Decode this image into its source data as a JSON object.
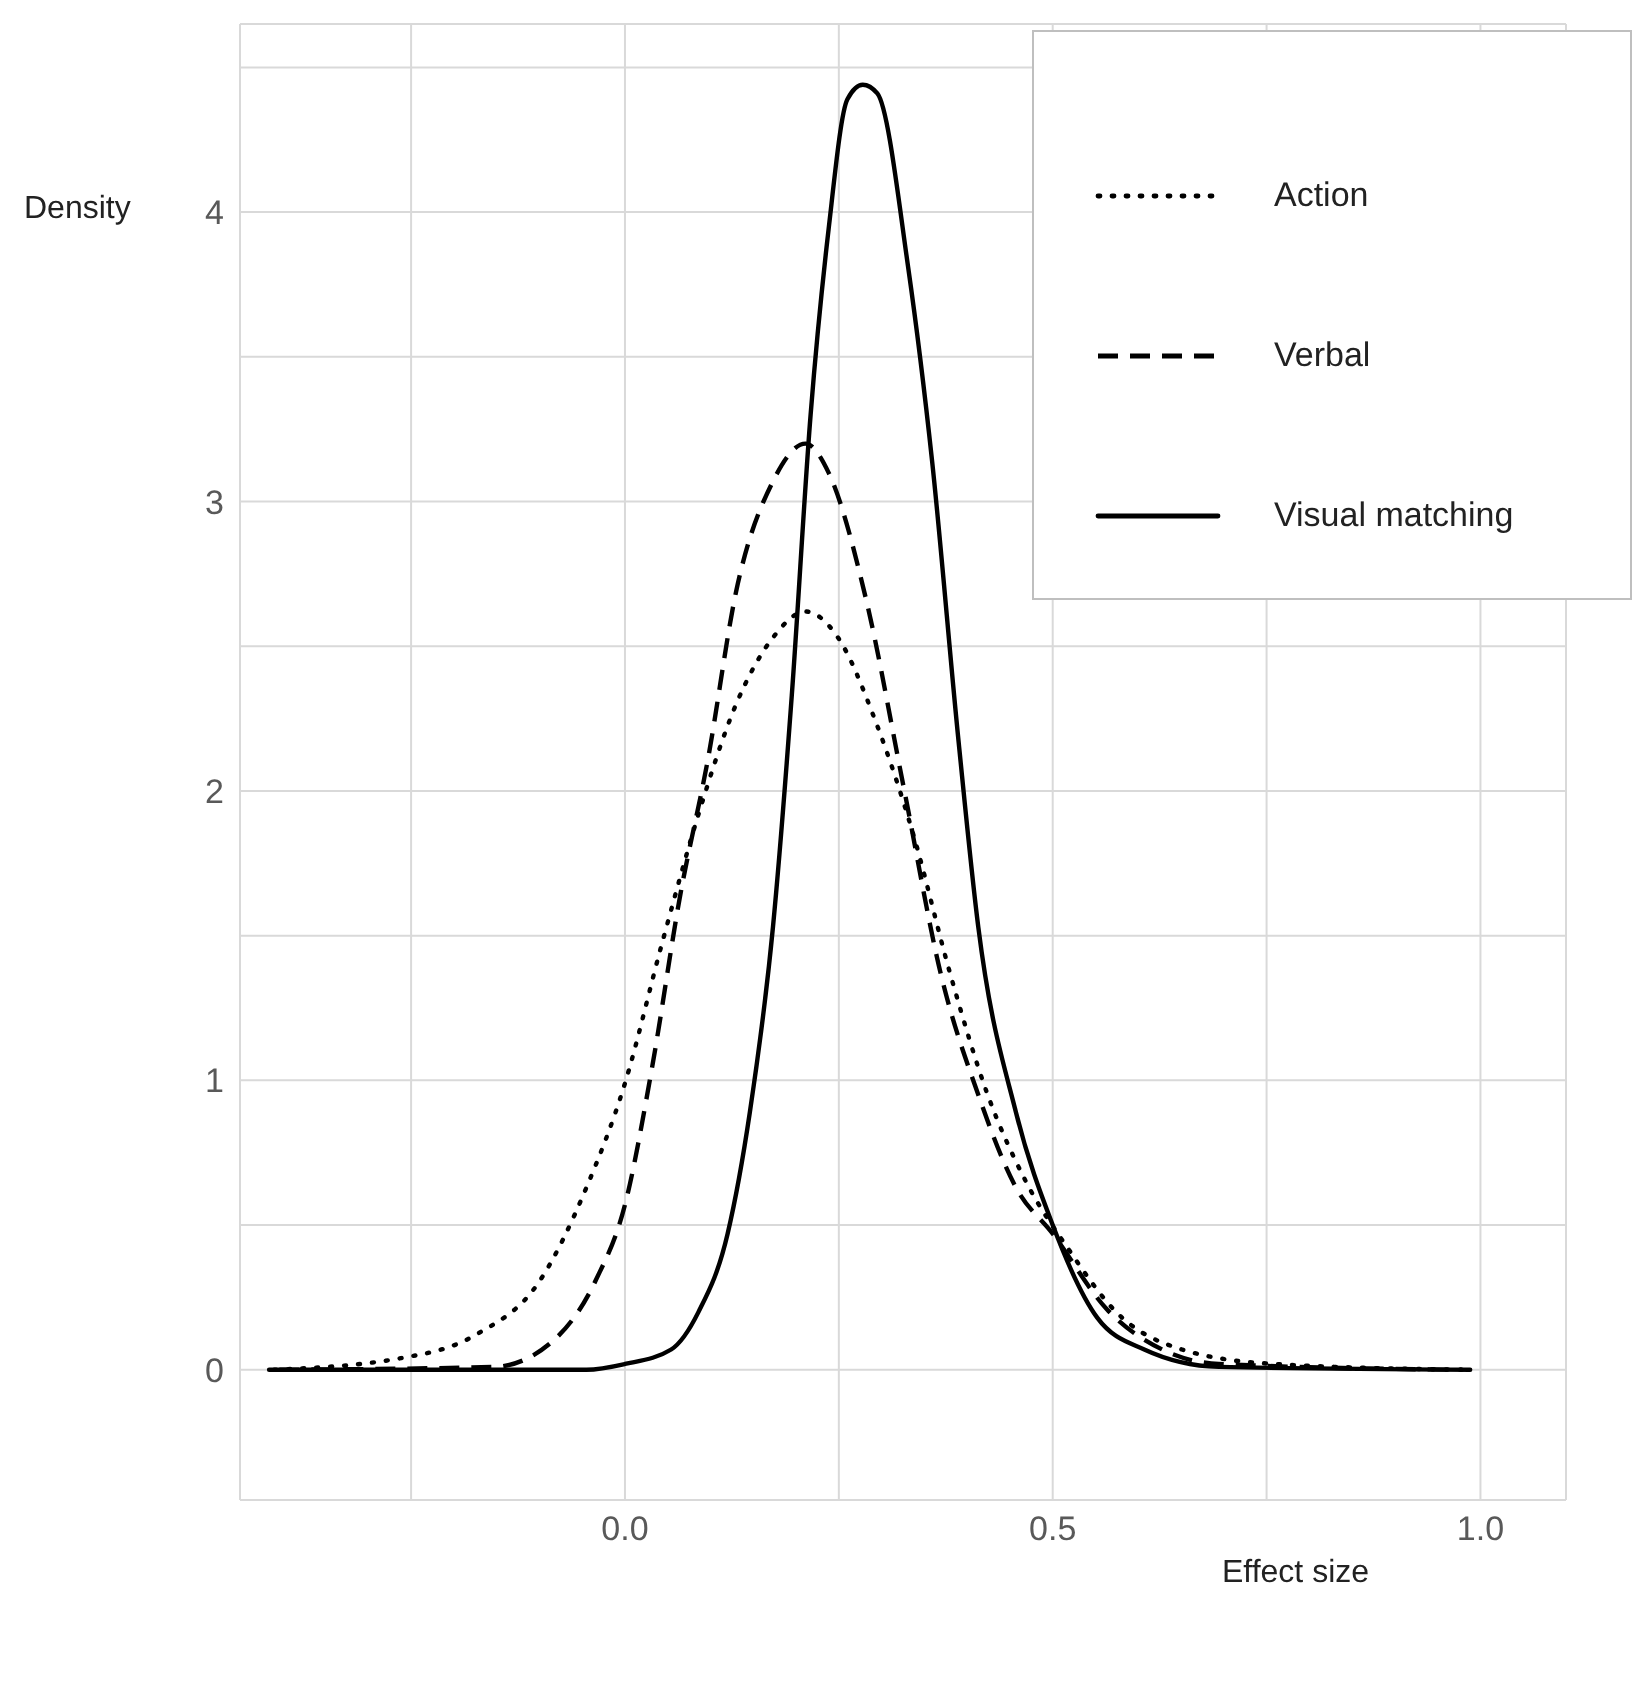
{
  "chart_data": {
    "type": "line",
    "xlabel": "Effect size",
    "ylabel": "Density",
    "xlim": [
      -0.45,
      1.1
    ],
    "ylim": [
      -0.45,
      4.65
    ],
    "xticks": [
      {
        "value": -0.25,
        "label": null
      },
      {
        "value": 0,
        "label": "0.0"
      },
      {
        "value": 0.25,
        "label": null
      },
      {
        "value": 0.5,
        "label": "0.5"
      },
      {
        "value": 0.75,
        "label": null
      },
      {
        "value": 1,
        "label": "1.0"
      }
    ],
    "yticks": [
      0,
      {
        "value": 0.5,
        "label": null
      },
      1,
      {
        "value": 1.5,
        "label": null
      },
      2,
      {
        "value": 2.5,
        "label": null
      },
      3,
      {
        "value": 3.5,
        "label": null
      },
      4,
      {
        "value": 4.5,
        "label": null
      }
    ],
    "grid": true,
    "legend": "top right",
    "marker": "none",
    "series": [
      {
        "name": "Action",
        "color": "#000000",
        "line_style": "dotted",
        "x": [
          -0.41,
          -0.262,
          -0.175,
          -0.099,
          -0.045,
          0,
          0.043,
          0.086,
          0.13,
          0.173,
          0.211,
          0.249,
          0.293,
          0.337,
          0.38,
          0.424,
          0.467,
          0.52,
          0.574,
          0.651,
          0.759,
          0.983
        ],
        "values": [
          0,
          0.04,
          0.12,
          0.31,
          0.63,
          0.99,
          1.47,
          1.92,
          2.3,
          2.53,
          2.62,
          2.53,
          2.24,
          1.85,
          1.37,
          0.95,
          0.66,
          0.41,
          0.2,
          0.07,
          0.02,
          0
        ]
      },
      {
        "name": "Verbal",
        "color": "#000000",
        "line_style": "dashed",
        "x": [
          -0.404,
          -0.153,
          -0.088,
          -0.034,
          0,
          0.032,
          0.064,
          0.097,
          0.13,
          0.173,
          0.211,
          0.238,
          0.282,
          0.326,
          0.369,
          0.413,
          0.457,
          0.5,
          0.563,
          0.628,
          0.694,
          0.978
        ],
        "values": [
          0,
          0.01,
          0.09,
          0.31,
          0.57,
          1.05,
          1.63,
          2.11,
          2.69,
          3.07,
          3.2,
          3.1,
          2.66,
          2.01,
          1.37,
          0.95,
          0.63,
          0.47,
          0.21,
          0.07,
          0.02,
          0
        ]
      },
      {
        "name": "Visual matching",
        "color": "#000000",
        "line_style": "solid",
        "x": [
          -0.416,
          -0.045,
          0,
          0.054,
          0.086,
          0.12,
          0.146,
          0.173,
          0.195,
          0.217,
          0.238,
          0.26,
          0.278,
          0.295,
          0.331,
          0.359,
          0.39,
          0.413,
          0.457,
          0.5,
          0.552,
          0.607,
          0.694,
          0.988
        ],
        "values": [
          0,
          0,
          0.02,
          0.07,
          0.2,
          0.47,
          0.89,
          1.53,
          2.33,
          3.3,
          3.94,
          4.39,
          4.44,
          4.41,
          3.81,
          3.14,
          2.17,
          1.53,
          0.89,
          0.5,
          0.18,
          0.07,
          0.01,
          0
        ]
      }
    ]
  }
}
